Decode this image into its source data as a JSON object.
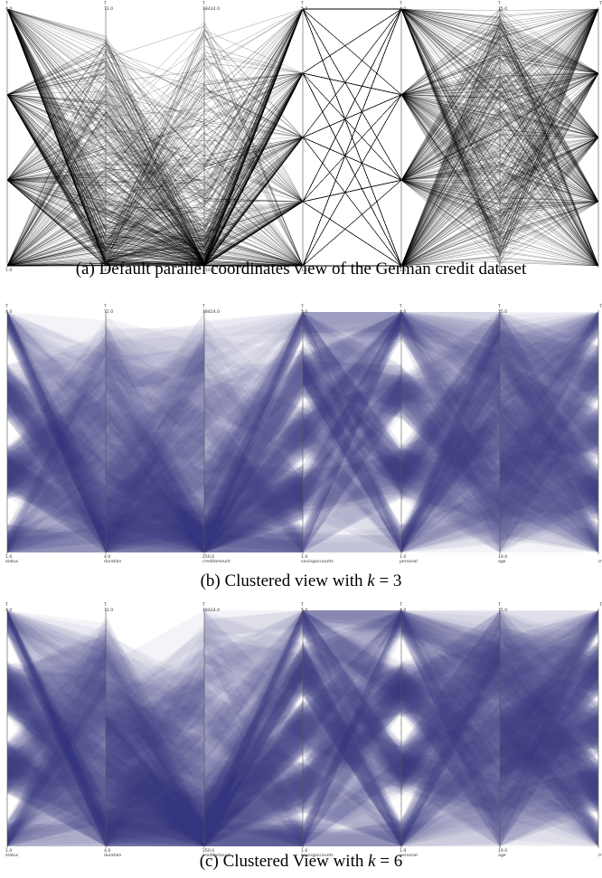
{
  "chart_data": [
    {
      "type": "parallel-coordinates",
      "caption_prefix": "(a)",
      "caption": "Default parallel coordinates view of the German credit dataset",
      "style": "lines",
      "axes": [
        {
          "name": "status",
          "max": "4.0",
          "min": "1.0"
        },
        {
          "name": "duration",
          "max": "72.0",
          "min": "4.0"
        },
        {
          "name": "creditamount",
          "max": "18424.0",
          "min": "250.0"
        },
        {
          "name": "savingaccounts",
          "max": "5.0",
          "min": "1.0"
        },
        {
          "name": "personal",
          "max": "4.0",
          "min": "1.0"
        },
        {
          "name": "age",
          "max": "75.0",
          "min": "19.0"
        },
        {
          "name": "cr",
          "max": "",
          "min": ""
        }
      ],
      "line_color": "#000000"
    },
    {
      "type": "parallel-coordinates",
      "caption_prefix": "(b)",
      "caption": "Clustered view with ",
      "k_label": "k",
      "k_value": "= 3",
      "style": "clustered",
      "k": 3,
      "axes": [
        {
          "name": "status",
          "max": "4.0",
          "min": "1.0"
        },
        {
          "name": "duration",
          "max": "72.0",
          "min": "4.0"
        },
        {
          "name": "creditamount",
          "max": "18424.0",
          "min": "250.0"
        },
        {
          "name": "savingaccounts",
          "max": "5.0",
          "min": "1.0"
        },
        {
          "name": "personal",
          "max": "4.0",
          "min": "1.0"
        },
        {
          "name": "age",
          "max": "75.0",
          "min": "19.0"
        },
        {
          "name": "cr",
          "max": "",
          "min": ""
        }
      ],
      "band_color": "#3a3f7a"
    },
    {
      "type": "parallel-coordinates",
      "caption_prefix": "(c)",
      "caption": "Clustered View with ",
      "k_label": "k",
      "k_value": "= 6",
      "style": "clustered",
      "k": 6,
      "axes": [
        {
          "name": "status",
          "max": "4.0",
          "min": "1.0"
        },
        {
          "name": "duration",
          "max": "72.0",
          "min": "4.0"
        },
        {
          "name": "creditamount",
          "max": "18424.0",
          "min": "250.0"
        },
        {
          "name": "savingaccounts",
          "max": "5.0",
          "min": "1.0"
        },
        {
          "name": "personal",
          "max": "4.0",
          "min": "1.0"
        },
        {
          "name": "age",
          "max": "75.0",
          "min": "19.0"
        },
        {
          "name": "cr",
          "max": "",
          "min": ""
        }
      ],
      "band_color": "#3a3f7a"
    }
  ]
}
